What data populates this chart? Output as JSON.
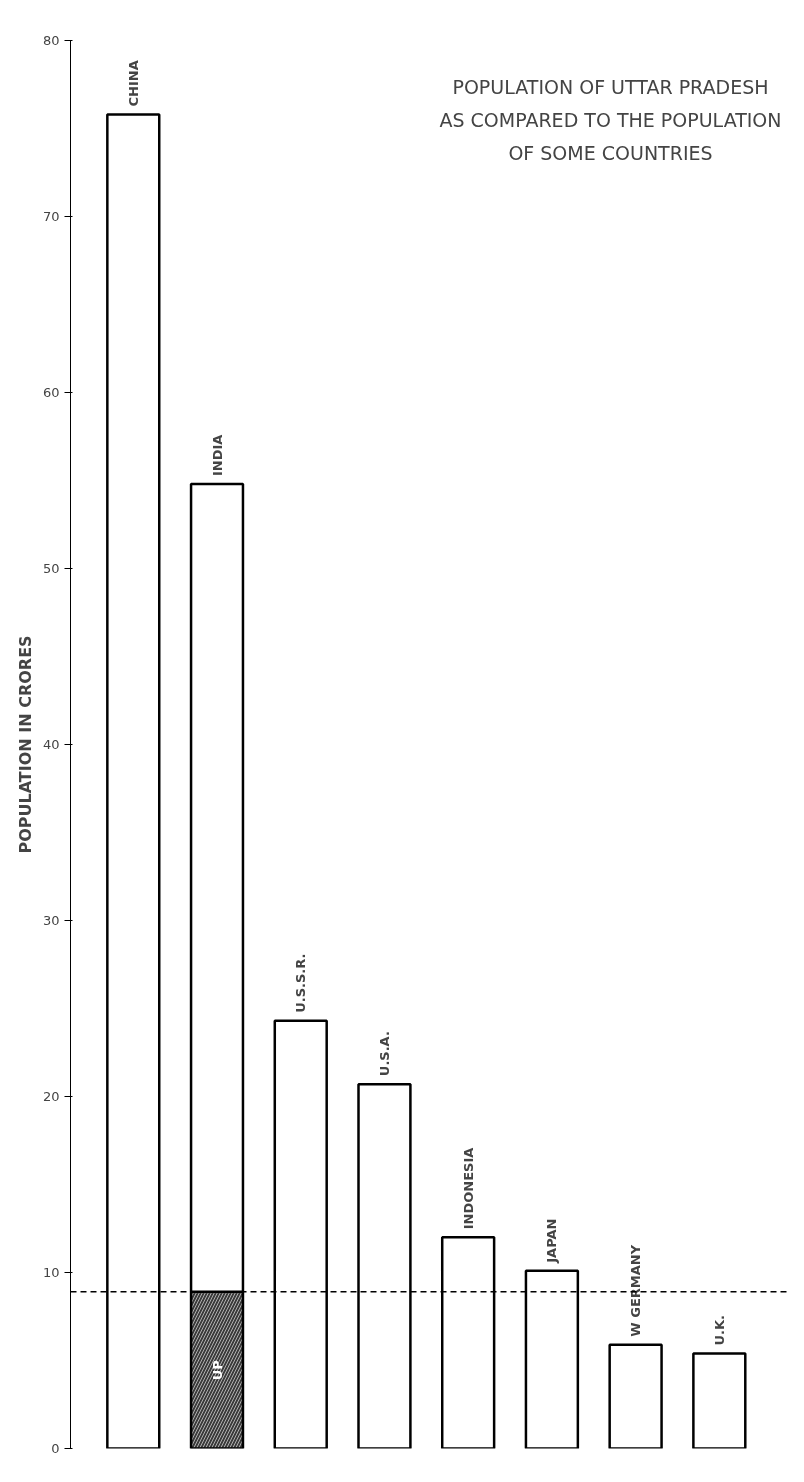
{
  "chart_data": {
    "type": "bar",
    "title": "POPULATION OF UTTAR PRADESH\nAS COMPARED TO THE POPULATION\nOF SOME COUNTRIES",
    "ylabel": "POPULATION IN CRORES",
    "categories": [
      "CHINA",
      "INDIA",
      "U.S.S.R.",
      "U.S.A.",
      "INDONESIA",
      "JAPAN",
      "W GERMANY",
      "U.K."
    ],
    "stacked": true,
    "series": [
      {
        "name": "UP",
        "color": "#3a3a3a",
        "values": [
          null,
          8.9,
          null,
          null,
          null,
          null,
          null,
          null
        ]
      },
      {
        "color": "#ffffff",
        "values": [
          75.8,
          45.9,
          24.3,
          20.7,
          12.0,
          10.1,
          5.9,
          5.4
        ]
      }
    ],
    "ylim": [
      0,
      80
    ],
    "yticks": [
      0,
      10,
      20,
      30,
      40,
      50,
      60,
      70,
      80
    ],
    "ref_lines": [
      {
        "axis": "y",
        "value": 8.9,
        "line_style": "dashed",
        "color": "#000000"
      }
    ],
    "grid": false
  }
}
